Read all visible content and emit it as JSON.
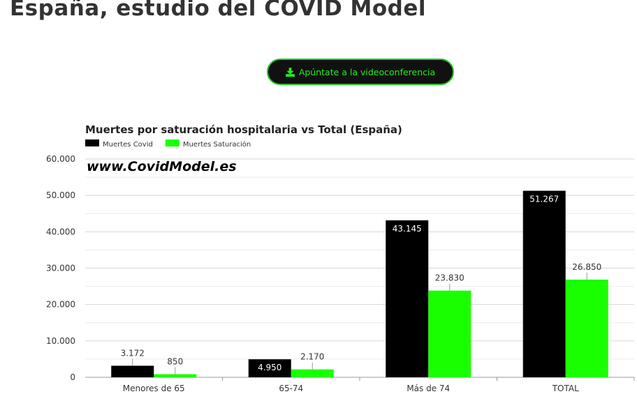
{
  "page": {
    "title": "España, estudio del COVID Model"
  },
  "cta": {
    "label": "Apúntate a la videoconferencia",
    "icon": "download-icon",
    "accent": "#1ec81e"
  },
  "chart_data": {
    "type": "bar",
    "title": "Muertes por saturación hospitalaria vs Total (España)",
    "watermark": "www.CovidModel.es",
    "legend_position": "top-left",
    "grid": true,
    "categories": [
      "Menores de 65",
      "65-74",
      "Más de 74",
      "TOTAL"
    ],
    "ylim": [
      0,
      60000
    ],
    "yticks": [
      0,
      10000,
      20000,
      30000,
      40000,
      50000,
      60000
    ],
    "ytick_labels": [
      "0",
      "10.000",
      "20.000",
      "30.000",
      "40.000",
      "50.000",
      "60.000"
    ],
    "series": [
      {
        "name": "Muertes Covid",
        "color": "#000000",
        "values": [
          3172,
          4950,
          43145,
          51267
        ],
        "labels": [
          "3.172",
          "4.950",
          "43.145",
          "51.267"
        ]
      },
      {
        "name": "Muertes Saturación",
        "color": "#1aff00",
        "values": [
          850,
          2170,
          23830,
          26850
        ],
        "labels": [
          "850",
          "2.170",
          "23.830",
          "26.850"
        ]
      }
    ]
  }
}
